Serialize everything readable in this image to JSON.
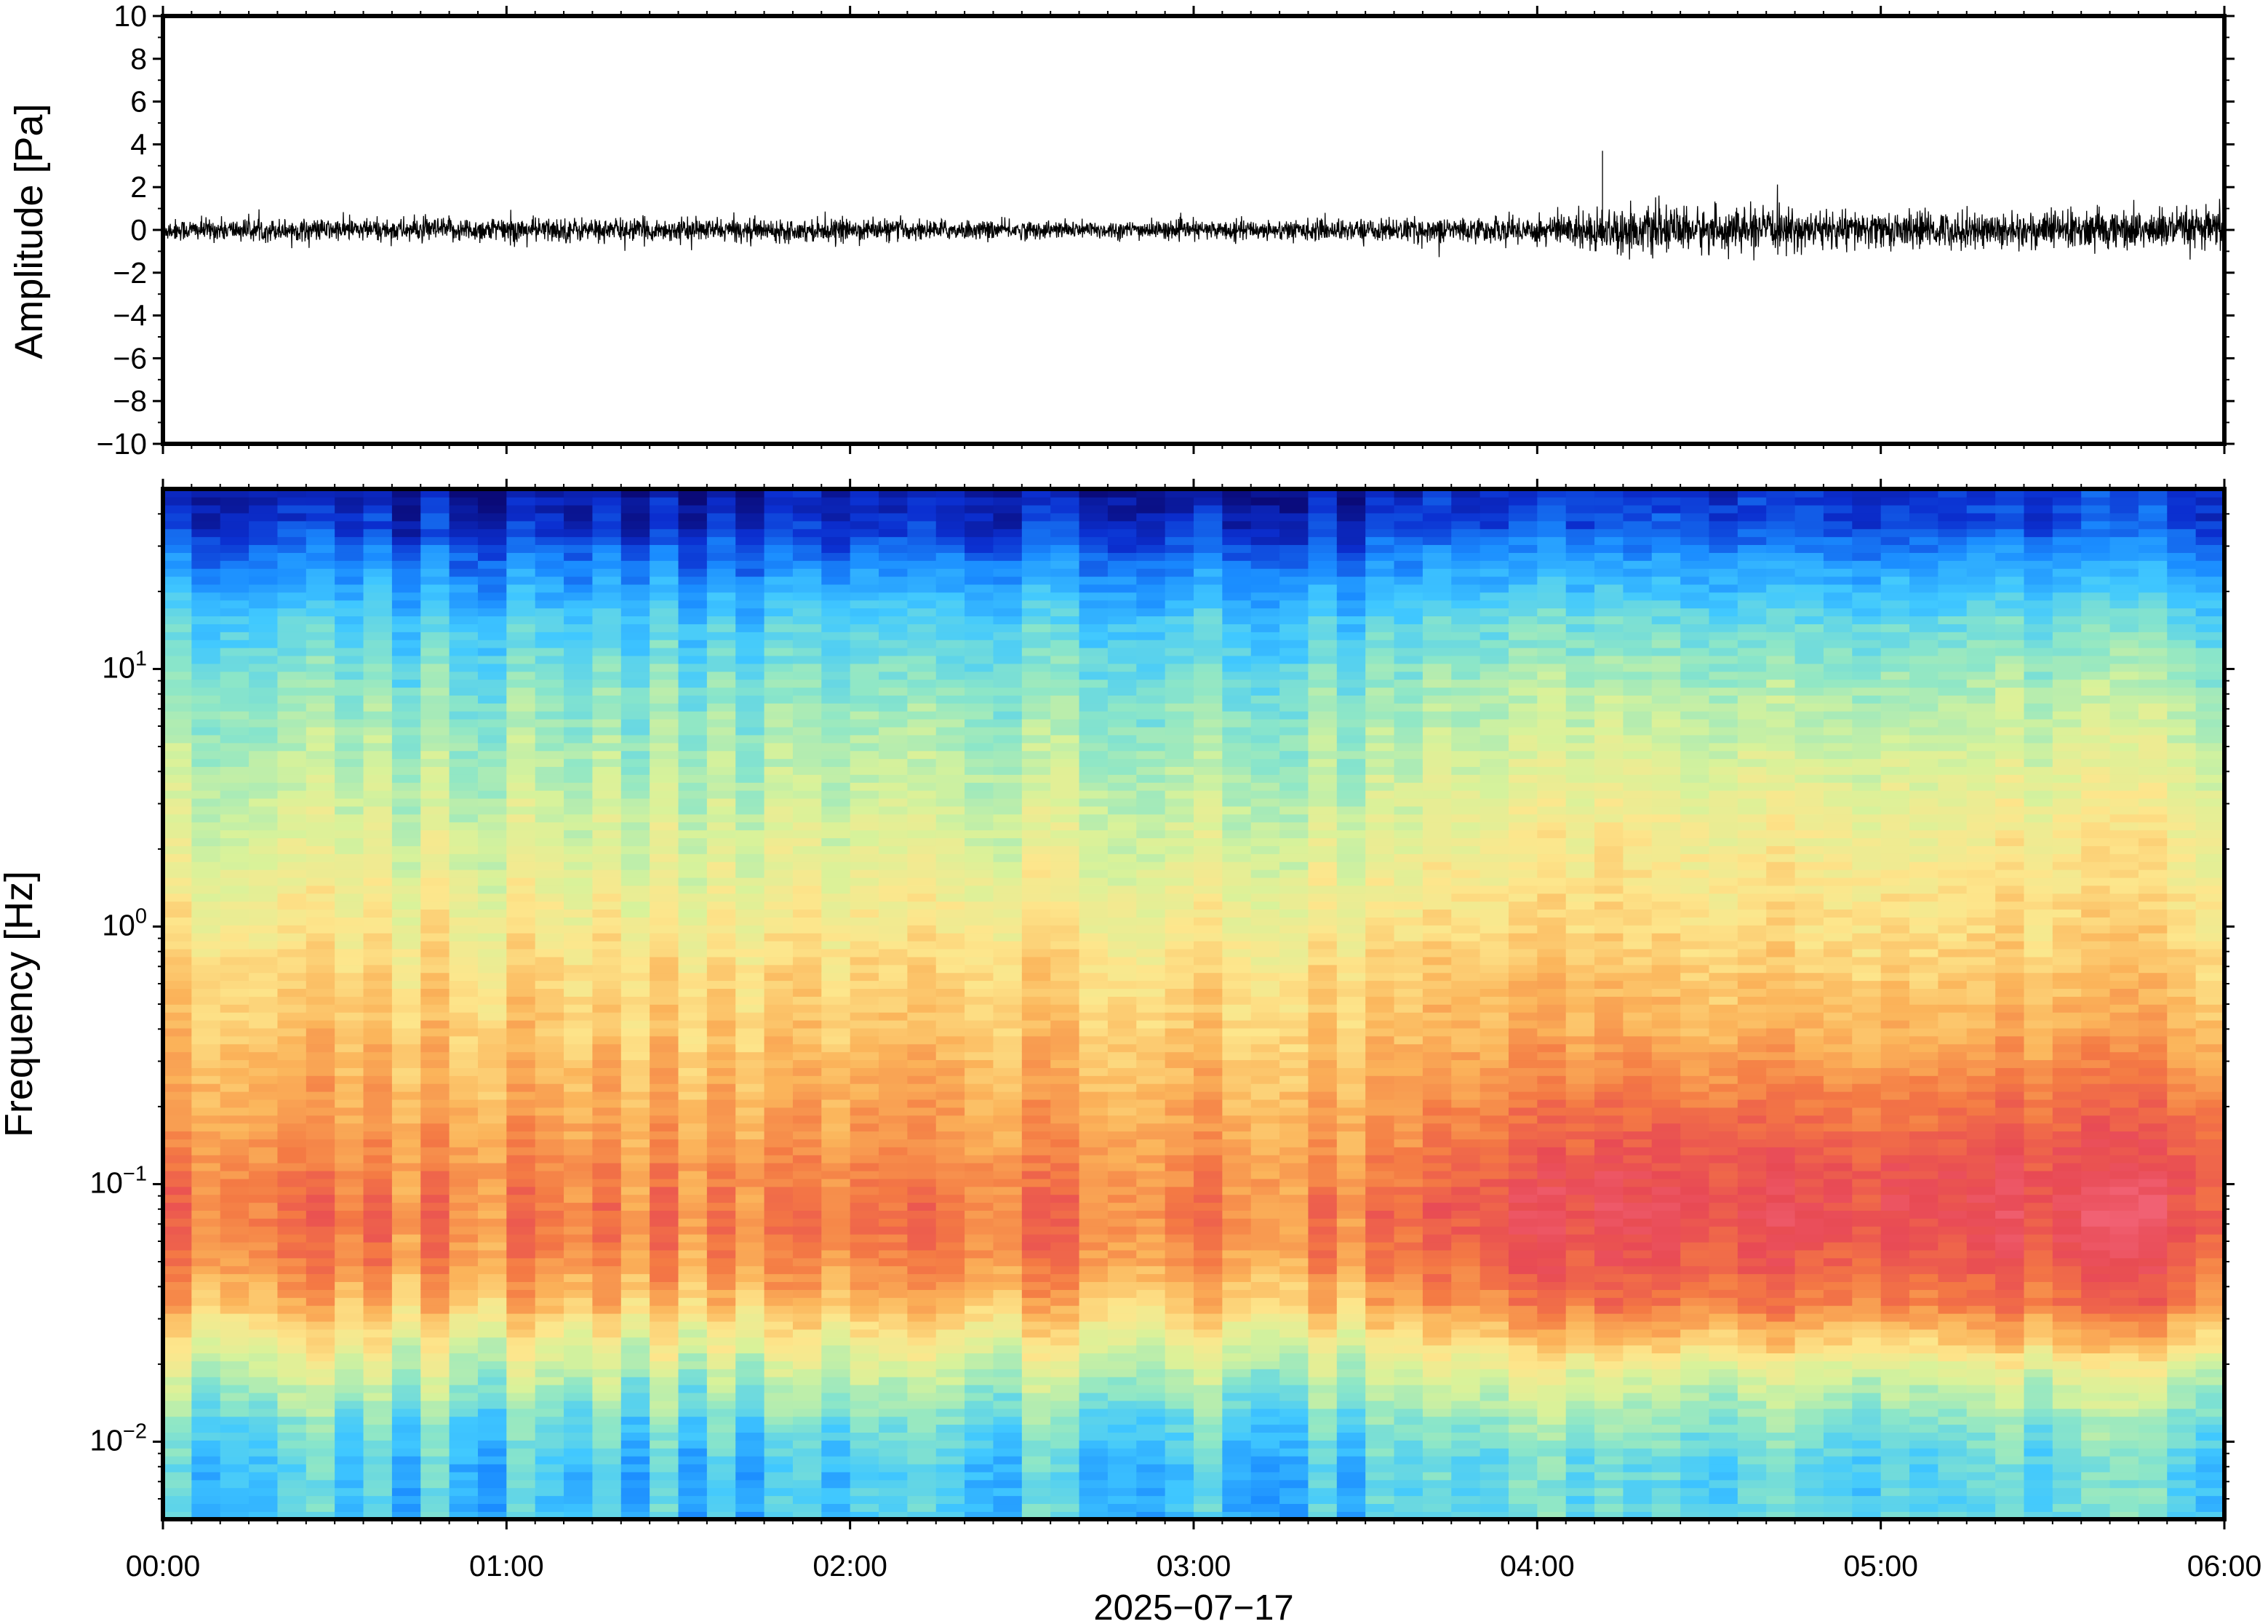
{
  "chart_data": [
    {
      "type": "line",
      "ylabel": "Amplitude [Pa]",
      "ylim": [
        -10,
        10
      ],
      "yticks": [
        "10",
        "8",
        "6",
        "4",
        "2",
        "0",
        "−2",
        "−4",
        "−6",
        "−8",
        "−10"
      ],
      "x_range": [
        "00:00",
        "06:00"
      ],
      "line_color": "#000000",
      "grid": false,
      "envelope": {
        "x_hours": [
          0.0,
          0.5,
          1.0,
          1.5,
          2.0,
          2.5,
          3.0,
          3.5,
          3.9,
          4.1,
          4.2,
          4.4,
          4.7,
          5.0,
          5.3,
          5.6,
          6.0
        ],
        "amplitude_pa": [
          0.6,
          0.6,
          0.7,
          0.6,
          0.6,
          0.5,
          0.5,
          0.6,
          0.7,
          1.0,
          1.2,
          1.2,
          1.1,
          1.0,
          1.0,
          1.1,
          1.1
        ]
      },
      "peak": {
        "x_hours": 4.19,
        "value_pa": 3.7
      }
    },
    {
      "type": "heatmap",
      "ylabel": "Frequency [Hz]",
      "yscale": "log",
      "ylim_hz": [
        0.005,
        50
      ],
      "yticks": [
        {
          "value": 0.01,
          "base": "10",
          "exp": "−2"
        },
        {
          "value": 0.1,
          "base": "10",
          "exp": "−1"
        },
        {
          "value": 1,
          "base": "10",
          "exp": "0"
        },
        {
          "value": 10,
          "base": "10",
          "exp": "1"
        }
      ],
      "xticks": [
        "00:00",
        "01:00",
        "02:00",
        "03:00",
        "04:00",
        "05:00",
        "06:00"
      ],
      "xlabel": "2025−07−17",
      "colormap": "jet",
      "colormap_stops": [
        "#0a0a78",
        "#0b2fd0",
        "#1a8cff",
        "#40c8ff",
        "#8ce6c8",
        "#d8f29a",
        "#fde68c",
        "#fbb45a",
        "#f47a44",
        "#e84a54",
        "#f26477"
      ],
      "grid": false,
      "level_profile": {
        "freq_hz": [
          0.005,
          0.008,
          0.012,
          0.018,
          0.025,
          0.035,
          0.05,
          0.07,
          0.1,
          0.15,
          0.25,
          0.4,
          0.7,
          1,
          2,
          4,
          8,
          15,
          25,
          35,
          50
        ],
        "level_first_4h": [
          0.3,
          0.3,
          0.36,
          0.46,
          0.56,
          0.68,
          0.76,
          0.8,
          0.78,
          0.74,
          0.7,
          0.66,
          0.62,
          0.58,
          0.52,
          0.46,
          0.4,
          0.32,
          0.2,
          0.1,
          0.05
        ],
        "level_last_2h": [
          0.34,
          0.34,
          0.4,
          0.5,
          0.66,
          0.8,
          0.86,
          0.9,
          0.9,
          0.85,
          0.78,
          0.7,
          0.65,
          0.62,
          0.58,
          0.52,
          0.45,
          0.36,
          0.24,
          0.14,
          0.1
        ]
      }
    }
  ]
}
